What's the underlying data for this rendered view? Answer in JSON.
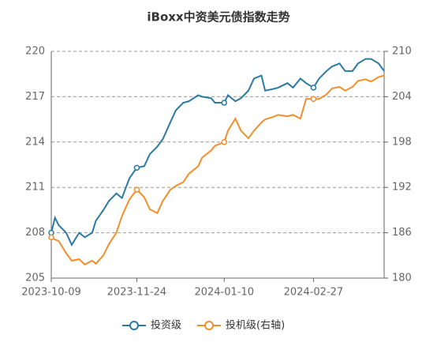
{
  "chart_data": {
    "type": "line",
    "title": "iBoxx中资美元债指数走势",
    "x": [
      "2023-10-09",
      "2023-10-11",
      "2023-10-13",
      "2023-10-17",
      "2023-10-20",
      "2023-10-24",
      "2023-10-27",
      "2023-10-31",
      "2023-11-02",
      "2023-11-06",
      "2023-11-09",
      "2023-11-13",
      "2023-11-16",
      "2023-11-20",
      "2023-11-24",
      "2023-11-28",
      "2023-12-01",
      "2023-12-05",
      "2023-12-08",
      "2023-12-12",
      "2023-12-15",
      "2023-12-19",
      "2023-12-22",
      "2023-12-27",
      "2023-12-29",
      "2024-01-03",
      "2024-01-05",
      "2024-01-10",
      "2024-01-12",
      "2024-01-16",
      "2024-01-19",
      "2024-01-23",
      "2024-01-26",
      "2024-01-30",
      "2024-02-01",
      "2024-02-05",
      "2024-02-08",
      "2024-02-13",
      "2024-02-16",
      "2024-02-20",
      "2024-02-23",
      "2024-02-27",
      "2024-03-01",
      "2024-03-05",
      "2024-03-08",
      "2024-03-12",
      "2024-03-15",
      "2024-03-19",
      "2024-03-22",
      "2024-03-26",
      "2024-03-29",
      "2024-04-02",
      "2024-04-05"
    ],
    "series": [
      {
        "name": "投资级",
        "color": "#2a7aa3",
        "values": [
          208.0,
          209.0,
          208.5,
          208.0,
          207.2,
          208.0,
          207.7,
          208.0,
          208.8,
          209.5,
          210.1,
          210.6,
          210.3,
          211.6,
          212.3,
          212.4,
          213.2,
          213.7,
          214.2,
          215.3,
          216.1,
          216.6,
          216.7,
          217.1,
          217.0,
          216.9,
          216.6,
          216.6,
          217.1,
          216.7,
          216.9,
          217.4,
          218.2,
          218.4,
          217.4,
          217.5,
          217.6,
          217.9,
          217.6,
          218.2,
          217.9,
          217.6,
          218.2,
          218.7,
          219.0,
          219.2,
          218.7,
          218.7,
          219.2,
          219.5,
          219.5,
          219.2,
          218.7
        ]
      },
      {
        "name": "投机级(右轴)",
        "color": "#f28e2b",
        "axis": "y2",
        "values": [
          185.4,
          185.1,
          184.9,
          183.3,
          182.3,
          182.5,
          181.8,
          182.3,
          181.9,
          183.0,
          184.5,
          186.0,
          188.2,
          190.4,
          191.7,
          190.7,
          189.1,
          188.6,
          190.2,
          191.7,
          192.2,
          192.7,
          193.8,
          194.8,
          195.9,
          196.9,
          197.5,
          198.0,
          199.5,
          201.1,
          199.5,
          198.5,
          199.5,
          200.6,
          201.0,
          201.3,
          201.6,
          201.4,
          201.6,
          201.1,
          203.7,
          203.7,
          203.7,
          204.3,
          205.1,
          205.3,
          204.8,
          205.3,
          206.1,
          206.3,
          206.0,
          206.6,
          206.8
        ]
      }
    ],
    "xlim": [
      "2023-10-09",
      "2024-04-05"
    ],
    "xticks": [
      "2023-10-09",
      "2023-11-24",
      "2024-01-10",
      "2024-02-27"
    ],
    "ylim": [
      205,
      220
    ],
    "yticks": [
      205,
      208,
      211,
      214,
      217,
      220
    ],
    "y2lim": [
      180,
      210
    ],
    "y2ticks": [
      180,
      186,
      192,
      198,
      204,
      210
    ],
    "grid": true,
    "legend": "bottom"
  }
}
